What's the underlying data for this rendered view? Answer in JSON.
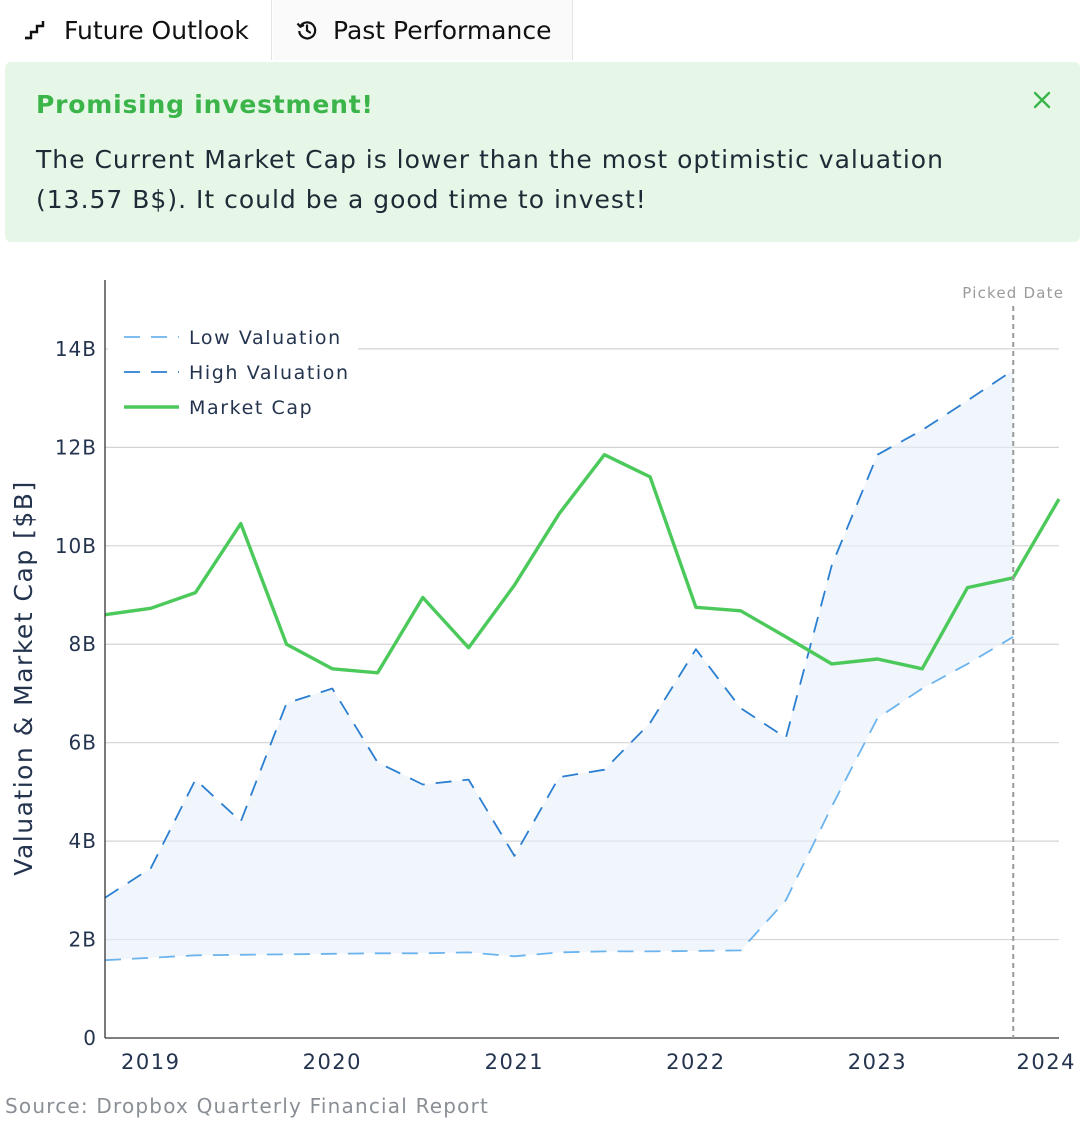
{
  "tabs": [
    {
      "label": "Future Outlook",
      "icon": "stairs-chart-icon"
    },
    {
      "label": "Past Performance",
      "icon": "history-icon"
    }
  ],
  "alert": {
    "title": "Promising investment!",
    "message": "The Current Market Cap is lower than the most optimistic valuation (13.57 B$). It could be a good time to invest!",
    "close_icon": "close-icon",
    "colors": {
      "background": "#e6f7e8",
      "title": "#3bb54a"
    }
  },
  "source": "Source: Dropbox Quarterly Financial Report",
  "chart_data": {
    "type": "line",
    "title": "",
    "ylabel": "Valuation & Market Cap [$B]",
    "xlabel": "",
    "ylim": [
      0,
      15.4
    ],
    "xlim": [
      "2018-10-01",
      "2024-01-01"
    ],
    "y_ticks": [
      {
        "value": 0,
        "label": "0"
      },
      {
        "value": 2,
        "label": "2B"
      },
      {
        "value": 4,
        "label": "4B"
      },
      {
        "value": 6,
        "label": "6B"
      },
      {
        "value": 8,
        "label": "8B"
      },
      {
        "value": 10,
        "label": "10B"
      },
      {
        "value": 12,
        "label": "12B"
      },
      {
        "value": 14,
        "label": "14B"
      }
    ],
    "x_ticks": [
      {
        "value": "2019-01-01",
        "label": "2019"
      },
      {
        "value": "2020-01-01",
        "label": "2020"
      },
      {
        "value": "2021-01-01",
        "label": "2021"
      },
      {
        "value": "2022-01-01",
        "label": "2022"
      },
      {
        "value": "2023-01-01",
        "label": "2023"
      },
      {
        "value": "2024-01-01",
        "label": "2024"
      }
    ],
    "grid": true,
    "legend_position": "top-left",
    "picked_date": {
      "x": "2023-10-01",
      "label": "Picked Date"
    },
    "series": [
      {
        "name": "Low Valuation",
        "style": "dashed",
        "color": "#6cb4ee",
        "points": [
          {
            "x": "2018-10-01",
            "y": 1.58
          },
          {
            "x": "2019-01-01",
            "y": 1.63
          },
          {
            "x": "2019-04-01",
            "y": 1.68
          },
          {
            "x": "2019-07-01",
            "y": 1.69
          },
          {
            "x": "2019-10-01",
            "y": 1.7
          },
          {
            "x": "2020-01-01",
            "y": 1.71
          },
          {
            "x": "2020-04-01",
            "y": 1.72
          },
          {
            "x": "2020-07-01",
            "y": 1.72
          },
          {
            "x": "2020-10-01",
            "y": 1.74
          },
          {
            "x": "2021-01-01",
            "y": 1.66
          },
          {
            "x": "2021-04-01",
            "y": 1.74
          },
          {
            "x": "2021-07-01",
            "y": 1.76
          },
          {
            "x": "2021-10-01",
            "y": 1.76
          },
          {
            "x": "2022-01-01",
            "y": 1.77
          },
          {
            "x": "2022-04-01",
            "y": 1.78
          },
          {
            "x": "2022-07-01",
            "y": 2.8
          },
          {
            "x": "2022-10-01",
            "y": 4.7
          },
          {
            "x": "2023-01-01",
            "y": 6.5
          },
          {
            "x": "2023-04-01",
            "y": 7.1
          },
          {
            "x": "2023-07-01",
            "y": 7.6
          },
          {
            "x": "2023-10-01",
            "y": 8.15
          }
        ]
      },
      {
        "name": "High Valuation",
        "style": "dashed",
        "color": "#2b7fd1",
        "points": [
          {
            "x": "2018-10-01",
            "y": 2.85
          },
          {
            "x": "2019-01-01",
            "y": 3.45
          },
          {
            "x": "2019-04-01",
            "y": 5.25
          },
          {
            "x": "2019-07-01",
            "y": 4.4
          },
          {
            "x": "2019-10-01",
            "y": 6.8
          },
          {
            "x": "2020-01-01",
            "y": 7.1
          },
          {
            "x": "2020-04-01",
            "y": 5.6
          },
          {
            "x": "2020-07-01",
            "y": 5.15
          },
          {
            "x": "2020-10-01",
            "y": 5.25
          },
          {
            "x": "2021-01-01",
            "y": 3.7
          },
          {
            "x": "2021-04-01",
            "y": 5.3
          },
          {
            "x": "2021-07-01",
            "y": 5.45
          },
          {
            "x": "2021-10-01",
            "y": 6.4
          },
          {
            "x": "2022-01-01",
            "y": 7.9
          },
          {
            "x": "2022-04-01",
            "y": 6.7
          },
          {
            "x": "2022-07-01",
            "y": 6.1
          },
          {
            "x": "2022-10-01",
            "y": 9.6
          },
          {
            "x": "2023-01-01",
            "y": 11.85
          },
          {
            "x": "2023-04-01",
            "y": 12.35
          },
          {
            "x": "2023-07-01",
            "y": 12.95
          },
          {
            "x": "2023-10-01",
            "y": 13.57
          }
        ]
      },
      {
        "name": "Market Cap",
        "style": "solid",
        "color": "#4cc95b",
        "points": [
          {
            "x": "2018-10-01",
            "y": 8.6
          },
          {
            "x": "2019-01-01",
            "y": 8.73
          },
          {
            "x": "2019-04-01",
            "y": 9.05
          },
          {
            "x": "2019-07-01",
            "y": 10.45
          },
          {
            "x": "2019-10-01",
            "y": 8.0
          },
          {
            "x": "2020-01-01",
            "y": 7.5
          },
          {
            "x": "2020-04-01",
            "y": 7.42
          },
          {
            "x": "2020-07-01",
            "y": 8.95
          },
          {
            "x": "2020-10-01",
            "y": 7.93
          },
          {
            "x": "2021-01-01",
            "y": 9.2
          },
          {
            "x": "2021-04-01",
            "y": 10.65
          },
          {
            "x": "2021-07-01",
            "y": 11.85
          },
          {
            "x": "2021-10-01",
            "y": 11.4
          },
          {
            "x": "2022-01-01",
            "y": 8.75
          },
          {
            "x": "2022-04-01",
            "y": 8.68
          },
          {
            "x": "2022-07-01",
            "y": 8.15
          },
          {
            "x": "2022-10-01",
            "y": 7.6
          },
          {
            "x": "2023-01-01",
            "y": 7.7
          },
          {
            "x": "2023-04-01",
            "y": 7.5
          },
          {
            "x": "2023-07-01",
            "y": 9.15
          },
          {
            "x": "2023-10-01",
            "y": 9.35
          },
          {
            "x": "2024-01-01",
            "y": 10.95
          }
        ]
      }
    ]
  }
}
